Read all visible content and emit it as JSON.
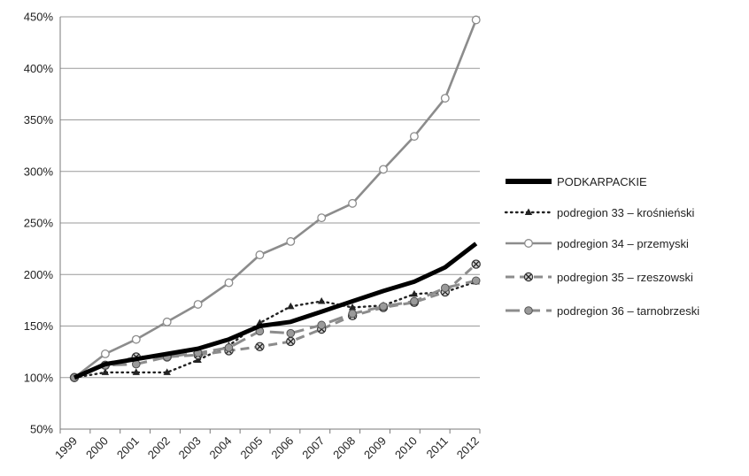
{
  "chart_data": {
    "type": "line",
    "categories": [
      "1999",
      "2000",
      "2001",
      "2002",
      "2003",
      "2004",
      "2005",
      "2006",
      "2007",
      "2008",
      "2009",
      "2010",
      "2011",
      "2012"
    ],
    "y_ticks": [
      "50%",
      "100%",
      "150%",
      "200%",
      "250%",
      "300%",
      "350%",
      "400%",
      "450%"
    ],
    "ylim": [
      50,
      450
    ],
    "y_unit": "%",
    "grid": true,
    "legend_position": "right",
    "series": [
      {
        "name": "PODKARPACKIE",
        "style": "solid-thick",
        "marker": "none",
        "color": "#000000",
        "values": [
          100,
          113,
          118,
          123,
          128,
          137,
          150,
          154,
          164,
          174,
          184,
          193,
          207,
          230
        ]
      },
      {
        "name": "podregion 33 – krośnieński",
        "style": "dotted",
        "marker": "triangle",
        "color": "#222222",
        "values": [
          100,
          105,
          105,
          105,
          117,
          131,
          153,
          169,
          174,
          168,
          170,
          181,
          183,
          193
        ]
      },
      {
        "name": "podregion 34 – przemyski",
        "style": "solid",
        "marker": "circle-open",
        "color": "#8c8c8c",
        "values": [
          100,
          123,
          137,
          154,
          171,
          192,
          219,
          232,
          255,
          269,
          302,
          334,
          371,
          447
        ]
      },
      {
        "name": "podregion 35 – rzeszowski",
        "style": "dashed",
        "marker": "circle-x",
        "color": "#8c8c8c",
        "values": [
          100,
          112,
          120,
          120,
          122,
          126,
          130,
          135,
          147,
          160,
          168,
          173,
          183,
          210
        ]
      },
      {
        "name": "podregion 36 – tarnobrzeski",
        "style": "long-dash",
        "marker": "circle-filled",
        "color": "#8c8c8c",
        "values": [
          100,
          112,
          113,
          120,
          124,
          129,
          145,
          143,
          151,
          162,
          169,
          174,
          187,
          194
        ]
      }
    ]
  }
}
